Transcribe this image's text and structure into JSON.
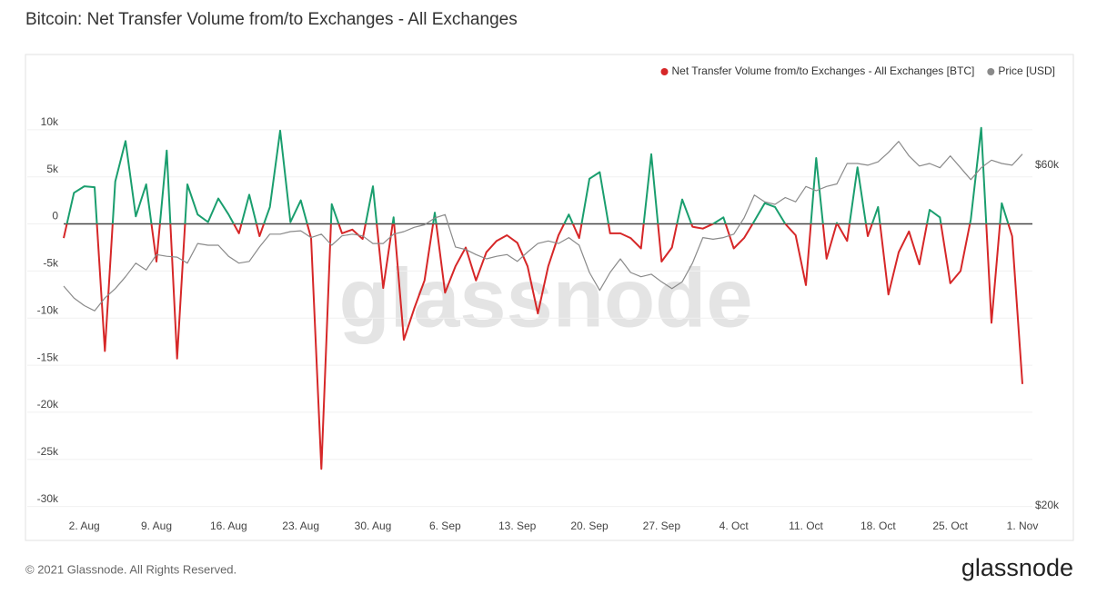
{
  "chart_data": {
    "type": "line",
    "title": "Bitcoin: Net Transfer Volume from/to Exchanges - All Exchanges",
    "copyright": "© 2021 Glassnode. All Rights Reserved.",
    "brand": "glassnode",
    "watermark": "glassnode",
    "legend": "top-right",
    "grid": true,
    "categories": [
      null,
      null,
      "2. Aug",
      null,
      null,
      null,
      null,
      null,
      null,
      "9. Aug",
      null,
      null,
      null,
      null,
      null,
      null,
      "16. Aug",
      null,
      null,
      null,
      null,
      null,
      null,
      "23. Aug",
      null,
      null,
      null,
      null,
      null,
      null,
      "30. Aug",
      null,
      null,
      null,
      null,
      null,
      null,
      "6. Sep",
      null,
      null,
      null,
      null,
      null,
      null,
      "13. Sep",
      null,
      null,
      null,
      null,
      null,
      null,
      "20. Sep",
      null,
      null,
      null,
      null,
      null,
      null,
      "27. Sep",
      null,
      null,
      null,
      null,
      null,
      null,
      "4. Oct",
      null,
      null,
      null,
      null,
      null,
      null,
      "11. Oct",
      null,
      null,
      null,
      null,
      null,
      null,
      "18. Oct",
      null,
      null,
      null,
      null,
      null,
      null,
      "25. Oct",
      null,
      null,
      null,
      null,
      null,
      null,
      "1. Nov"
    ],
    "ylim": [
      -31000,
      15000
    ],
    "yticks": [
      {
        "value": 10000,
        "label": "10k"
      },
      {
        "value": 5000,
        "label": "5k"
      },
      0,
      {
        "value": -5000,
        "label": "-5k"
      },
      {
        "value": -10000,
        "label": "-10k"
      },
      {
        "value": -15000,
        "label": "-15k"
      },
      {
        "value": -20000,
        "label": "-20k"
      },
      {
        "value": -25000,
        "label": "-25k"
      },
      {
        "value": -30000,
        "label": "-30k"
      }
    ],
    "y2lim": [
      18800,
      69700
    ],
    "y2ticks": [
      {
        "value": 60000,
        "label": "$60k"
      },
      {
        "value": 20000,
        "label": "$20k"
      }
    ],
    "series": [
      {
        "name": "Net Transfer Volume from/to Exchanges - All Exchanges [BTC]",
        "color": "#d62728",
        "positive_color": "#1a9e6e",
        "values": [
          -1500,
          3300,
          4000,
          3900,
          -13500,
          4500,
          8800,
          800,
          4200,
          -4000,
          7800,
          -14300,
          4200,
          1000,
          200,
          2700,
          1000,
          -1000,
          3100,
          -1300,
          1800,
          9900,
          200,
          2500,
          -1500,
          -26000,
          2100,
          -1000,
          -600,
          -1600,
          4000,
          -6800,
          700,
          -12300,
          -9000,
          -6000,
          1200,
          -7300,
          -4500,
          -2500,
          -6000,
          -3000,
          -1800,
          -1200,
          -2000,
          -4500,
          -9500,
          -4500,
          -1200,
          1000,
          -1500,
          4800,
          5500,
          -1000,
          -1000,
          -1500,
          -2600,
          7400,
          -4000,
          -2500,
          2600,
          -300,
          -500,
          0,
          700,
          -2600,
          -1500,
          300,
          2200,
          1800,
          0,
          -1200,
          -6500,
          7000,
          -3700,
          100,
          -1800,
          6000,
          -1300,
          1800,
          -7500,
          -3000,
          -800,
          -4300,
          1500,
          700,
          -6300,
          -5000,
          500,
          10200,
          -10500,
          2200,
          -1300,
          -17000
        ]
      },
      {
        "name": "Price [USD]",
        "color": "#8a8a8a",
        "axis": "y2",
        "values": [
          45800,
          44400,
          43500,
          42900,
          44400,
          45500,
          46900,
          48500,
          47700,
          49500,
          49300,
          49200,
          48500,
          50800,
          50600,
          50600,
          49300,
          48500,
          48700,
          50400,
          51900,
          51900,
          52200,
          52300,
          51500,
          51900,
          50600,
          51700,
          51900,
          51700,
          50800,
          50800,
          51900,
          52200,
          52700,
          53000,
          53800,
          54200,
          50400,
          50100,
          49500,
          49000,
          49300,
          49500,
          48700,
          49800,
          50800,
          51100,
          50800,
          51500,
          50600,
          47400,
          45300,
          47400,
          49000,
          47400,
          46900,
          47200,
          46300,
          45500,
          46300,
          48500,
          51500,
          51300,
          51500,
          51900,
          53800,
          56500,
          55700,
          55400,
          56200,
          55700,
          57500,
          57000,
          57500,
          57800,
          60200,
          60200,
          60000,
          60400,
          61500,
          62800,
          61100,
          59900,
          60200,
          59700,
          61100,
          59700,
          58300,
          59700,
          60600,
          60200,
          60000,
          61300
        ]
      }
    ]
  }
}
